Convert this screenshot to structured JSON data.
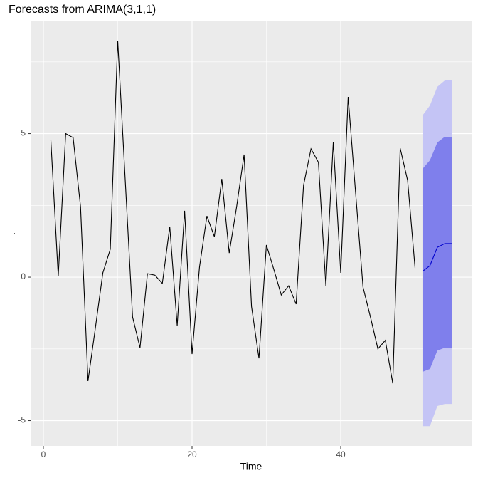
{
  "chart_data": {
    "type": "line",
    "title": "Forecasts from ARIMA(3,1,1)",
    "x_label": "Time",
    "y_label": ".",
    "x": [
      1,
      2,
      3,
      4,
      5,
      6,
      7,
      8,
      9,
      10,
      11,
      12,
      13,
      14,
      15,
      16,
      17,
      18,
      19,
      20,
      21,
      22,
      23,
      24,
      25,
      26,
      27,
      28,
      29,
      30,
      31,
      32,
      33,
      34,
      35,
      36,
      37,
      38,
      39,
      40,
      41,
      42,
      43,
      44,
      45,
      46,
      47,
      48,
      49,
      50
    ],
    "values": [
      4.79,
      0.03,
      5.0,
      4.86,
      2.45,
      -3.62,
      -1.76,
      0.15,
      0.97,
      8.24,
      3.43,
      -1.39,
      -2.46,
      0.12,
      0.07,
      -0.22,
      1.76,
      -1.69,
      2.31,
      -2.68,
      0.35,
      2.13,
      1.41,
      3.42,
      0.84,
      2.46,
      4.27,
      -1.02,
      -2.83,
      1.12,
      0.27,
      -0.62,
      -0.3,
      -0.94,
      3.2,
      4.47,
      4.0,
      -0.3,
      4.71,
      0.15,
      6.28,
      2.95,
      -0.35,
      -1.39,
      -2.5,
      -2.2,
      -3.7,
      4.49,
      3.37,
      0.32
    ],
    "color": "#000000",
    "forecast": {
      "x": [
        51,
        52,
        53,
        54,
        55
      ],
      "mean": [
        0.2,
        0.4,
        1.04,
        1.17,
        1.17
      ],
      "lo80": [
        -3.3,
        -3.2,
        -2.56,
        -2.46,
        -2.46
      ],
      "hi80": [
        3.77,
        4.07,
        4.69,
        4.89,
        4.89
      ],
      "lo95": [
        -5.19,
        -5.19,
        -4.49,
        -4.42,
        -4.42
      ],
      "hi95": [
        5.63,
        5.98,
        6.63,
        6.85,
        6.85
      ],
      "mean_color": "#0000cc",
      "color80": "#7f7fec",
      "color95": "#c4c4f5"
    },
    "xlim": [
      -1.72,
      57.7
    ],
    "ylim": [
      -5.88,
      8.91
    ],
    "xticks": [
      0,
      20,
      40
    ],
    "yticks": [
      -5,
      0,
      5
    ],
    "xminor": [
      10,
      30,
      50
    ],
    "yminor": [
      -2.5,
      2.5,
      7.5
    ],
    "grid": true
  }
}
